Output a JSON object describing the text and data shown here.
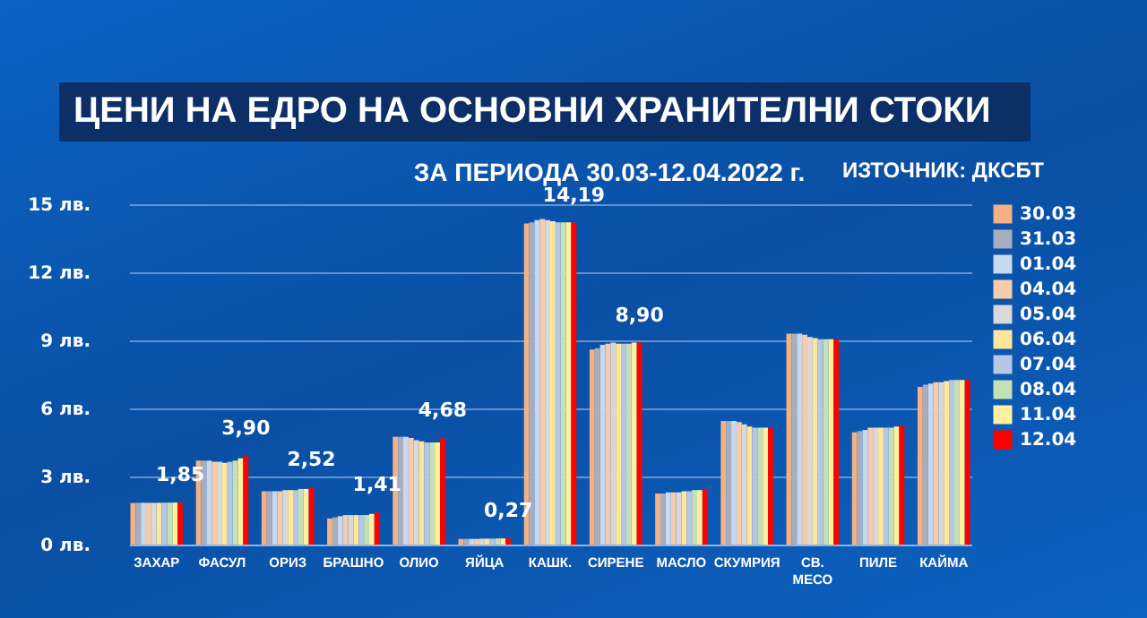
{
  "chart_data": {
    "type": "bar",
    "title": "ЦЕНИ НА ЕДРО НА ОСНОВНИ ХРАНИТЕЛНИ СТОКИ",
    "subtitle": "ЗА ПЕРИОДА 30.03-12.04.2022 г.",
    "annotations": [
      "ИЗТОЧНИК: ДКСБТ"
    ],
    "categories": [
      "ЗАХАР",
      "ФАСУЛ",
      "ОРИЗ",
      "БРАШНО",
      "ОЛИО",
      "ЯЙЦА",
      "КАШК.",
      "СИРЕНЕ",
      "МАСЛО",
      "СКУМРИЯ",
      "СВ. МЕСО",
      "ПИЛЕ",
      "КАЙМА"
    ],
    "ylim": [
      0,
      15
    ],
    "yticks": [
      {
        "value": 0,
        "label": "0 лв."
      },
      {
        "value": 3,
        "label": "3 лв."
      },
      {
        "value": 6,
        "label": "6 лв."
      },
      {
        "value": 9,
        "label": "9 лв."
      },
      {
        "value": 12,
        "label": "12 лв."
      },
      {
        "value": 15,
        "label": "15 лв."
      }
    ],
    "grid": "y",
    "legend": "right",
    "series": [
      {
        "name": "30.03",
        "color": "#f4b183",
        "values": [
          1.83,
          3.7,
          2.35,
          1.15,
          4.75,
          0.25,
          14.15,
          8.6,
          2.25,
          5.45,
          9.3,
          4.95,
          6.95
        ]
      },
      {
        "name": "31.03",
        "color": "#a6aebf",
        "values": [
          1.84,
          3.7,
          2.35,
          1.2,
          4.75,
          0.25,
          14.2,
          8.65,
          2.25,
          5.45,
          9.3,
          5.0,
          7.05
        ]
      },
      {
        "name": "01.04",
        "color": "#c6d9f0",
        "values": [
          1.84,
          3.7,
          2.35,
          1.25,
          4.75,
          0.25,
          14.3,
          8.8,
          2.3,
          5.45,
          9.3,
          5.05,
          7.1
        ]
      },
      {
        "name": "04.04",
        "color": "#f8cbad",
        "values": [
          1.84,
          3.65,
          2.35,
          1.3,
          4.7,
          0.25,
          14.35,
          8.85,
          2.3,
          5.4,
          9.25,
          5.15,
          7.15
        ]
      },
      {
        "name": "05.04",
        "color": "#d9d9d9",
        "values": [
          1.84,
          3.65,
          2.4,
          1.3,
          4.6,
          0.26,
          14.3,
          8.9,
          2.3,
          5.3,
          9.15,
          5.15,
          7.15
        ]
      },
      {
        "name": "06.04",
        "color": "#ffe699",
        "values": [
          1.84,
          3.6,
          2.4,
          1.3,
          4.55,
          0.26,
          14.25,
          8.85,
          2.35,
          5.2,
          9.1,
          5.15,
          7.2
        ]
      },
      {
        "name": "07.04",
        "color": "#b4c7e7",
        "values": [
          1.85,
          3.65,
          2.4,
          1.3,
          4.5,
          0.26,
          14.2,
          8.85,
          2.35,
          5.15,
          9.05,
          5.15,
          7.25
        ]
      },
      {
        "name": "08.04",
        "color": "#c5e0b4",
        "values": [
          1.85,
          3.7,
          2.45,
          1.3,
          4.5,
          0.27,
          14.2,
          8.85,
          2.4,
          5.15,
          9.05,
          5.15,
          7.25
        ]
      },
      {
        "name": "11.04",
        "color": "#fff0a0",
        "values": [
          1.85,
          3.8,
          2.45,
          1.35,
          4.5,
          0.27,
          14.2,
          8.9,
          2.4,
          5.15,
          9.05,
          5.2,
          7.25
        ]
      },
      {
        "name": "12.04",
        "color": "#ff0000",
        "values": [
          1.85,
          3.9,
          2.52,
          1.41,
          4.68,
          0.27,
          14.19,
          8.9,
          2.45,
          5.15,
          9.05,
          5.25,
          7.25
        ],
        "value_labels": [
          "1,85",
          "3,90",
          "2,52",
          "1,41",
          "4,68",
          "0,27",
          "14,19",
          "8,90",
          null,
          null,
          null,
          null,
          null
        ]
      }
    ]
  }
}
